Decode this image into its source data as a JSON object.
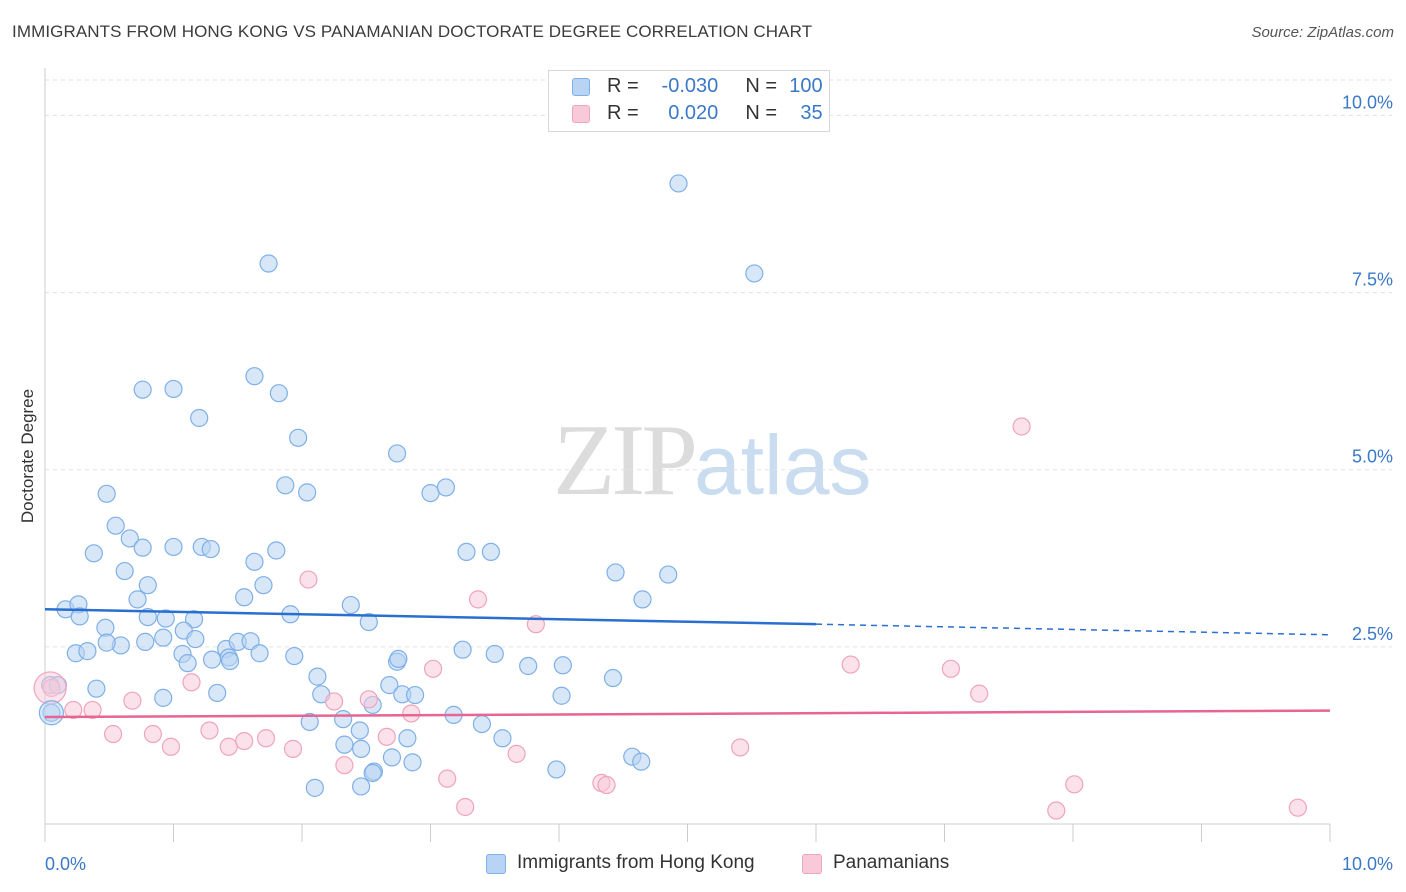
{
  "header": {
    "title": "IMMIGRANTS FROM HONG KONG VS PANAMANIAN DOCTORATE DEGREE CORRELATION CHART",
    "source": "Source: ZipAtlas.com"
  },
  "watermark": {
    "zip": "ZIP",
    "atlas": "atlas"
  },
  "colors": {
    "blue": "#7eb0e8",
    "blue_fill": "#b8d3f3",
    "blue_line": "#2a6fcf",
    "pink": "#f0a3bd",
    "pink_fill": "#f8cad9",
    "pink_line": "#e76592",
    "axis_text": "#3a78c8"
  },
  "legend_top": [
    {
      "r_label": "R =",
      "r_value": "-0.030",
      "n_label": "N =",
      "n_value": "100"
    },
    {
      "r_label": "R =",
      "r_value": "0.020",
      "n_label": "N =",
      "n_value": "35"
    }
  ],
  "legend_bottom": [
    {
      "label": "Immigrants from Hong Kong"
    },
    {
      "label": "Panamanians"
    }
  ],
  "chart_data": {
    "type": "scatter",
    "title": "IMMIGRANTS FROM HONG KONG VS PANAMANIAN DOCTORATE DEGREE CORRELATION CHART",
    "xlabel": "",
    "ylabel": "Doctorate Degree",
    "xlim": [
      0,
      10
    ],
    "ylim": [
      0,
      10.5
    ],
    "x_tick_labels": [
      "0.0%",
      "10.0%"
    ],
    "y_ticks": [
      2.5,
      5.0,
      7.5,
      10.0
    ],
    "y_tick_labels": [
      "2.5%",
      "5.0%",
      "7.5%",
      "10.0%"
    ],
    "grid": "horizontal dashed",
    "legend": "top-center",
    "series": [
      {
        "name": "Immigrants from Hong Kong",
        "R": -0.03,
        "N": 100,
        "trend": {
          "x0": 0.0,
          "y0": 3.03,
          "x1": 6.0,
          "y1": 2.82,
          "dashed_to_x": 10.0,
          "dashed_to_y": 2.67
        },
        "points": [
          [
            4.93,
            9.04
          ],
          [
            5.52,
            7.77
          ],
          [
            1.74,
            7.91
          ],
          [
            1.63,
            6.32
          ],
          [
            0.76,
            6.13
          ],
          [
            1.0,
            6.14
          ],
          [
            1.82,
            6.08
          ],
          [
            1.2,
            5.73
          ],
          [
            1.97,
            5.45
          ],
          [
            2.74,
            5.23
          ],
          [
            1.87,
            4.78
          ],
          [
            1.63,
            3.7
          ],
          [
            2.04,
            4.68
          ],
          [
            3.0,
            4.67
          ],
          [
            3.12,
            4.75
          ],
          [
            0.55,
            4.21
          ],
          [
            0.66,
            4.03
          ],
          [
            0.76,
            3.9
          ],
          [
            1.0,
            3.91
          ],
          [
            0.38,
            3.82
          ],
          [
            0.48,
            4.66
          ],
          [
            1.22,
            3.91
          ],
          [
            1.29,
            3.88
          ],
          [
            1.8,
            3.86
          ],
          [
            0.62,
            3.57
          ],
          [
            0.8,
            3.37
          ],
          [
            1.7,
            3.37
          ],
          [
            1.55,
            3.2
          ],
          [
            0.72,
            3.17
          ],
          [
            0.16,
            3.03
          ],
          [
            0.26,
            3.1
          ],
          [
            0.27,
            2.93
          ],
          [
            0.8,
            2.92
          ],
          [
            0.94,
            2.9
          ],
          [
            1.16,
            2.89
          ],
          [
            1.91,
            2.96
          ],
          [
            2.38,
            3.09
          ],
          [
            2.52,
            2.85
          ],
          [
            3.28,
            3.84
          ],
          [
            3.47,
            3.84
          ],
          [
            4.85,
            3.52
          ],
          [
            4.65,
            3.17
          ],
          [
            0.47,
            2.77
          ],
          [
            0.59,
            2.52
          ],
          [
            0.78,
            2.57
          ],
          [
            0.92,
            2.63
          ],
          [
            1.08,
            2.73
          ],
          [
            1.17,
            2.61
          ],
          [
            1.41,
            2.47
          ],
          [
            1.5,
            2.57
          ],
          [
            1.6,
            2.58
          ],
          [
            0.24,
            2.41
          ],
          [
            0.33,
            2.44
          ],
          [
            0.48,
            2.56
          ],
          [
            1.07,
            2.4
          ],
          [
            1.11,
            2.27
          ],
          [
            1.3,
            2.32
          ],
          [
            1.43,
            2.35
          ],
          [
            1.44,
            2.3
          ],
          [
            1.67,
            2.41
          ],
          [
            1.94,
            2.37
          ],
          [
            2.74,
            2.29
          ],
          [
            2.75,
            2.33
          ],
          [
            3.25,
            2.46
          ],
          [
            3.5,
            2.4
          ],
          [
            3.76,
            2.23
          ],
          [
            4.03,
            2.24
          ],
          [
            4.44,
            3.55
          ],
          [
            4.42,
            2.06
          ],
          [
            0.04,
            1.96
          ],
          [
            0.1,
            1.96
          ],
          [
            0.4,
            1.91
          ],
          [
            0.92,
            1.78
          ],
          [
            1.34,
            1.85
          ],
          [
            2.12,
            2.08
          ],
          [
            2.15,
            1.83
          ],
          [
            2.68,
            1.96
          ],
          [
            2.78,
            1.83
          ],
          [
            2.88,
            1.82
          ],
          [
            4.02,
            1.81
          ],
          [
            0.05,
            1.57
          ],
          [
            2.06,
            1.44
          ],
          [
            2.32,
            1.48
          ],
          [
            2.55,
            1.68
          ],
          [
            3.18,
            1.54
          ],
          [
            3.4,
            1.41
          ],
          [
            2.45,
            1.32
          ],
          [
            2.82,
            1.21
          ],
          [
            3.56,
            1.21
          ],
          [
            2.46,
            1.06
          ],
          [
            2.33,
            1.12
          ],
          [
            2.7,
            0.94
          ],
          [
            2.86,
            0.87
          ],
          [
            2.56,
            0.74
          ],
          [
            3.98,
            0.77
          ],
          [
            4.57,
            0.95
          ],
          [
            4.64,
            0.88
          ],
          [
            2.1,
            0.51
          ],
          [
            2.46,
            0.53
          ],
          [
            2.55,
            0.72
          ]
        ]
      },
      {
        "name": "Panamanians",
        "R": 0.02,
        "N": 35,
        "trend": {
          "x0": 0.0,
          "y0": 1.51,
          "x1": 10.0,
          "y1": 1.6
        },
        "points": [
          [
            7.6,
            5.61
          ],
          [
            2.05,
            3.45
          ],
          [
            3.37,
            3.17
          ],
          [
            3.82,
            2.82
          ],
          [
            6.27,
            2.25
          ],
          [
            7.05,
            2.19
          ],
          [
            7.27,
            1.84
          ],
          [
            0.05,
            1.92
          ],
          [
            0.22,
            1.61
          ],
          [
            0.37,
            1.61
          ],
          [
            0.68,
            1.74
          ],
          [
            1.14,
            2.0
          ],
          [
            2.25,
            1.73
          ],
          [
            2.52,
            1.76
          ],
          [
            2.85,
            1.56
          ],
          [
            3.02,
            2.19
          ],
          [
            0.53,
            1.27
          ],
          [
            0.84,
            1.27
          ],
          [
            0.98,
            1.09
          ],
          [
            1.28,
            1.32
          ],
          [
            1.43,
            1.09
          ],
          [
            1.55,
            1.17
          ],
          [
            1.72,
            1.21
          ],
          [
            1.93,
            1.06
          ],
          [
            2.33,
            0.83
          ],
          [
            2.66,
            1.23
          ],
          [
            3.67,
            0.99
          ],
          [
            5.41,
            1.08
          ],
          [
            3.13,
            0.64
          ],
          [
            3.27,
            0.24
          ],
          [
            4.33,
            0.58
          ],
          [
            4.37,
            0.55
          ],
          [
            8.01,
            0.56
          ],
          [
            7.87,
            0.19
          ],
          [
            9.75,
            0.23
          ]
        ]
      }
    ]
  }
}
